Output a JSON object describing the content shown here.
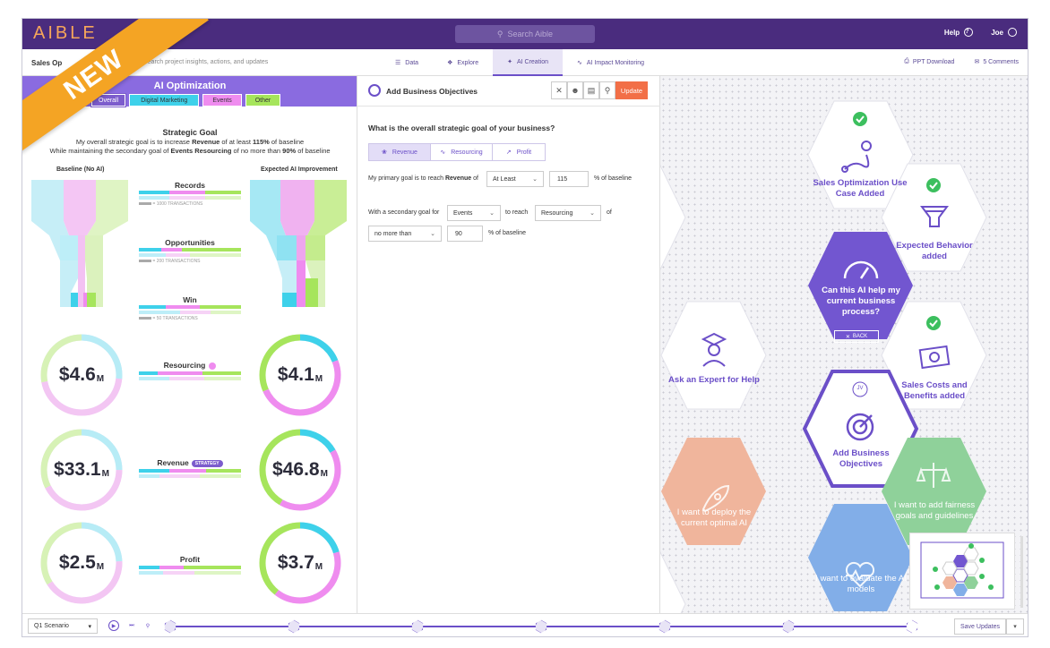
{
  "ribbon": "NEW",
  "topbar": {
    "logo": "AIBLE",
    "search_placeholder": "Search Aible",
    "help": "Help",
    "help_glyph": "?",
    "user": "Joe"
  },
  "subbar": {
    "project": "Sales Op",
    "project_sub": "Search project insights, actions, and updates",
    "tabs": [
      "Data",
      "Explore",
      "AI Creation",
      "AI Impact Monitoring"
    ],
    "active_tab": "AI Creation",
    "ppt": "PPT Download",
    "comments": "5 Comments"
  },
  "left": {
    "title": "AI Optimization",
    "chips": [
      "Overall",
      "Digital Marketing",
      "Events",
      "Other"
    ],
    "strategic_title": "Strategic Goal",
    "goal_line1_pre": "My overall strategic goal is to increase ",
    "goal_line1_metric": "Revenue",
    "goal_line1_mid": " of at least ",
    "goal_line1_value": "115%",
    "goal_line1_post": " of baseline",
    "goal_line2_pre": "While maintaining the secondary goal of ",
    "goal_line2_metric": "Events Resourcing",
    "goal_line2_mid": " of no more than ",
    "goal_line2_value": "90%",
    "goal_line2_post": " of baseline",
    "col_baseline": "Baseline (No AI)",
    "col_expected": "Expected AI Improvement",
    "funnel_metrics": [
      {
        "label": "Records",
        "transactions": "= 1000 TRANSACTIONS"
      },
      {
        "label": "Opportunities",
        "transactions": "= 200 TRANSACTIONS"
      },
      {
        "label": "Win",
        "transactions": "= 50 TRANSACTIONS"
      }
    ],
    "donuts": [
      {
        "label": "Resourcing",
        "baseline": "$4.6",
        "baseline_unit": "M",
        "expected": "$4.1",
        "expected_unit": "M"
      },
      {
        "label": "Revenue",
        "badge": "STRATEGY",
        "baseline": "$33.1",
        "baseline_unit": "M",
        "expected": "$46.8",
        "expected_unit": "M"
      },
      {
        "label": "Profit",
        "baseline": "$2.5",
        "baseline_unit": "M",
        "expected": "$3.7",
        "expected_unit": "M"
      }
    ]
  },
  "mid": {
    "title": "Add Business Objectives",
    "update": "Update",
    "question": "What is the overall strategic goal of your business?",
    "segments": [
      "Revenue",
      "Resourcing",
      "Profit"
    ],
    "primary_pre": "My primary goal is to reach ",
    "primary_metric": "Revenue",
    "primary_of": " of",
    "primary_comparator": "At Least",
    "primary_value": "115",
    "primary_post": "% of baseline",
    "secondary_pre": "With a secondary goal for",
    "secondary_segment": "Events",
    "secondary_to": "to reach",
    "secondary_metric": "Resourcing",
    "secondary_of": "of",
    "secondary_comparator": "no more than",
    "secondary_value": "90",
    "secondary_post": "% of baseline"
  },
  "hexes": [
    {
      "label": "Sales Optimization Use Case Added",
      "state": "done"
    },
    {
      "label": "Expected Behavior added",
      "state": "done"
    },
    {
      "label": "Can this AI help my current business process?",
      "state": "active",
      "back": "BACK"
    },
    {
      "label": "Ask an Expert for Help",
      "state": "open"
    },
    {
      "label": "Sales Costs and Benefits added",
      "state": "done"
    },
    {
      "label": "Add Business Objectives",
      "state": "current",
      "initials": "JV"
    },
    {
      "label": "I want to deploy the current optimal AI",
      "state": "future"
    },
    {
      "label": "I want to add fairness goals and guidelines",
      "state": "future"
    },
    {
      "label": "I want to evaluate the AI models",
      "state": "future"
    }
  ],
  "bottom": {
    "scenario": "Q1 Scenario",
    "save": "Save Updates"
  },
  "colors": {
    "brand": "#4a2c7e",
    "accent": "#6b4fc8",
    "cyan": "#3ed1ea",
    "pink": "#ef8cef",
    "green": "#a6e55c",
    "update": "#f26f47"
  }
}
